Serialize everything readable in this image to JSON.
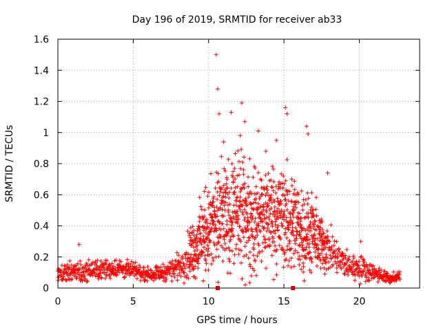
{
  "chart_data": {
    "type": "scatter",
    "title": "Day 196 of 2019, SRMTID for receiver ab33",
    "xlabel": "GPS time / hours",
    "ylabel": "SRMTID / TECUs",
    "xlim": [
      0,
      24
    ],
    "ylim": [
      0,
      1.6
    ],
    "xticks": [
      0,
      5,
      10,
      15,
      20
    ],
    "xtick_labels": [
      "0",
      "5",
      "10",
      "15",
      "20"
    ],
    "yticks": [
      0,
      0.2,
      0.4,
      0.6,
      0.8,
      1,
      1.2,
      1.4,
      1.6
    ],
    "ytick_labels": [
      "0",
      "0.2",
      "0.4",
      "0.6",
      "0.8",
      "1",
      "1.2",
      "1.4",
      "1.6"
    ],
    "grid": true,
    "marker": "+",
    "color": "#ff0000",
    "axis_markers_x": [
      10.6,
      15.6
    ],
    "envelope": [
      {
        "x": 0,
        "base": 0.09,
        "spread": 0.05
      },
      {
        "x": 1,
        "base": 0.1,
        "spread": 0.06
      },
      {
        "x": 2,
        "base": 0.11,
        "spread": 0.06
      },
      {
        "x": 3,
        "base": 0.12,
        "spread": 0.06
      },
      {
        "x": 4,
        "base": 0.13,
        "spread": 0.06
      },
      {
        "x": 5,
        "base": 0.11,
        "spread": 0.05
      },
      {
        "x": 6,
        "base": 0.09,
        "spread": 0.04
      },
      {
        "x": 7,
        "base": 0.1,
        "spread": 0.05
      },
      {
        "x": 8,
        "base": 0.14,
        "spread": 0.08
      },
      {
        "x": 9,
        "base": 0.25,
        "spread": 0.18
      },
      {
        "x": 10,
        "base": 0.38,
        "spread": 0.28
      },
      {
        "x": 11,
        "base": 0.45,
        "spread": 0.32
      },
      {
        "x": 12,
        "base": 0.48,
        "spread": 0.35
      },
      {
        "x": 13,
        "base": 0.42,
        "spread": 0.33
      },
      {
        "x": 14,
        "base": 0.48,
        "spread": 0.32
      },
      {
        "x": 15,
        "base": 0.45,
        "spread": 0.33
      },
      {
        "x": 16,
        "base": 0.38,
        "spread": 0.28
      },
      {
        "x": 17,
        "base": 0.33,
        "spread": 0.22
      },
      {
        "x": 18,
        "base": 0.24,
        "spread": 0.14
      },
      {
        "x": 19,
        "base": 0.15,
        "spread": 0.09
      },
      {
        "x": 20,
        "base": 0.13,
        "spread": 0.08
      },
      {
        "x": 21,
        "base": 0.1,
        "spread": 0.05
      },
      {
        "x": 22,
        "base": 0.06,
        "spread": 0.03
      },
      {
        "x": 22.7,
        "base": 0.07,
        "spread": 0.03
      }
    ],
    "notable_points": [
      {
        "x": 1.4,
        "y": 0.28
      },
      {
        "x": 10.5,
        "y": 1.5
      },
      {
        "x": 10.6,
        "y": 1.28
      },
      {
        "x": 10.7,
        "y": 1.12
      },
      {
        "x": 11.5,
        "y": 1.13
      },
      {
        "x": 12.2,
        "y": 1.19
      },
      {
        "x": 12.4,
        "y": 1.07
      },
      {
        "x": 12.1,
        "y": 0.98
      },
      {
        "x": 13.3,
        "y": 1.01
      },
      {
        "x": 15.1,
        "y": 1.16
      },
      {
        "x": 15.2,
        "y": 1.12
      },
      {
        "x": 16.5,
        "y": 1.04
      },
      {
        "x": 16.6,
        "y": 0.99
      },
      {
        "x": 17.9,
        "y": 0.74
      },
      {
        "x": 20.1,
        "y": 0.3
      },
      {
        "x": 14.5,
        "y": 0.95
      },
      {
        "x": 13.8,
        "y": 0.88
      },
      {
        "x": 11.0,
        "y": 0.94
      }
    ]
  }
}
